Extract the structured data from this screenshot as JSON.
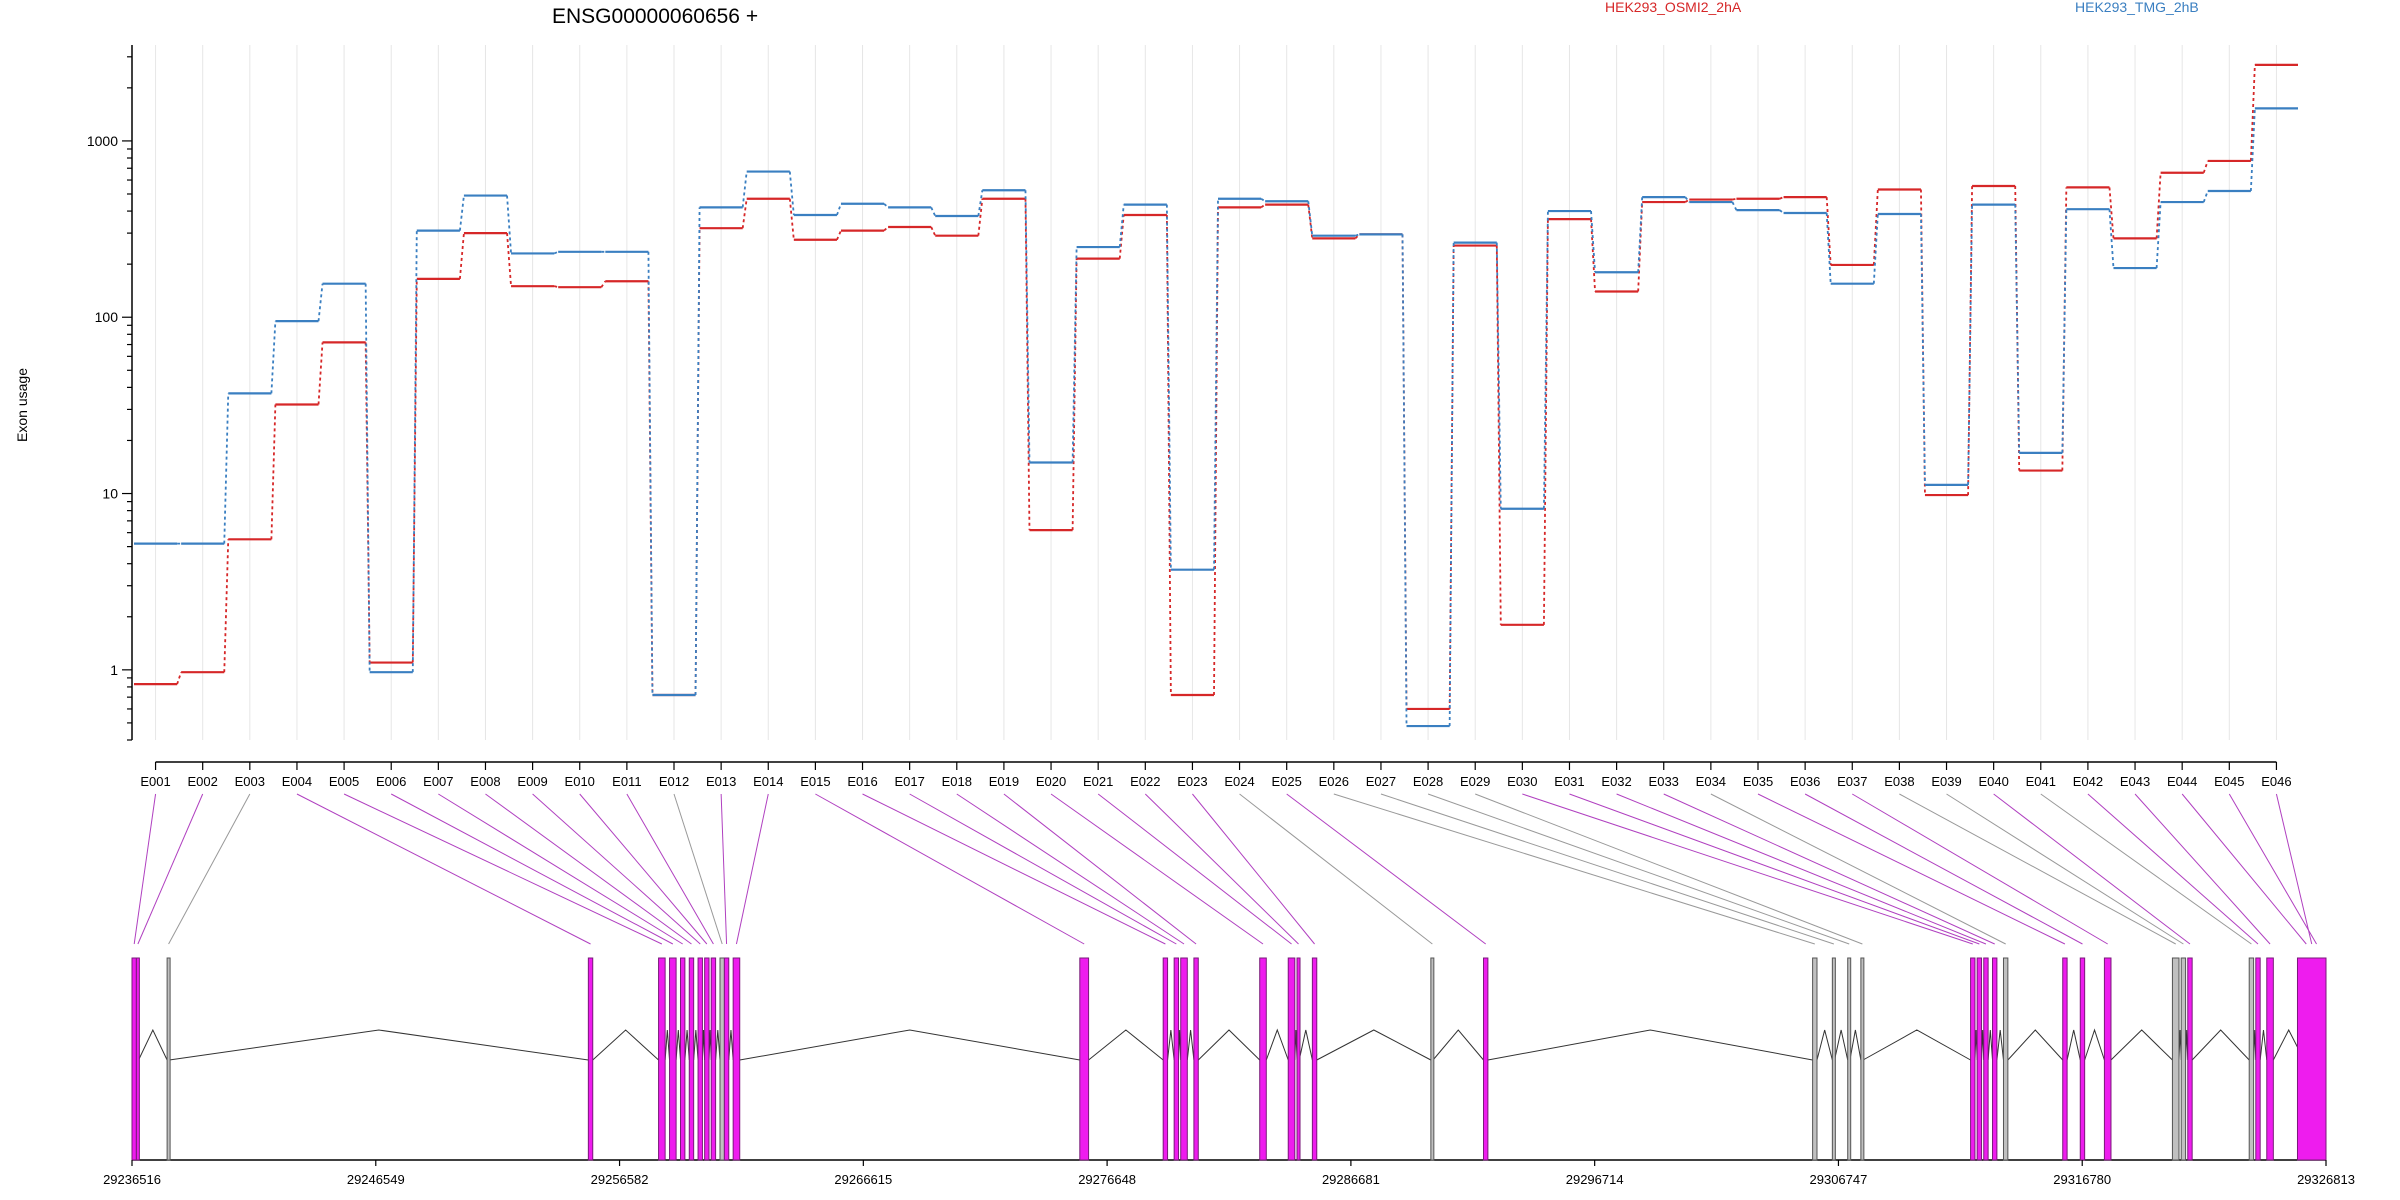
{
  "chart_data": {
    "type": "line",
    "title": "ENSG00000060656 +",
    "ylabel": "Exon usage",
    "yscale": "log",
    "ylim": [
      0.4,
      3500
    ],
    "yticks": [
      1,
      10,
      100,
      1000
    ],
    "ytick_labels": [
      "1",
      "10",
      "100",
      "1000"
    ],
    "grid": "vertical",
    "legend_placement": "top-right",
    "categories": [
      "E001",
      "E002",
      "E003",
      "E004",
      "E005",
      "E006",
      "E007",
      "E008",
      "E009",
      "E010",
      "E011",
      "E012",
      "E013",
      "E014",
      "E015",
      "E016",
      "E017",
      "E018",
      "E019",
      "E020",
      "E021",
      "E022",
      "E023",
      "E024",
      "E025",
      "E026",
      "E027",
      "E028",
      "E029",
      "E030",
      "E031",
      "E032",
      "E033",
      "E034",
      "E035",
      "E036",
      "E037",
      "E038",
      "E039",
      "E040",
      "E041",
      "E042",
      "E043",
      "E044",
      "E045",
      "E046"
    ],
    "series": [
      {
        "name": "HEK293_OSMI2_2hA",
        "color": "#d62728",
        "values": [
          0.83,
          0.97,
          5.5,
          32,
          72,
          1.1,
          165,
          300,
          150,
          148,
          160,
          0.72,
          320,
          470,
          275,
          310,
          325,
          290,
          470,
          6.2,
          215,
          380,
          0.72,
          420,
          435,
          280,
          295,
          0.6,
          255,
          1.8,
          360,
          140,
          450,
          465,
          470,
          480,
          198,
          530,
          9.8,
          555,
          13.5,
          545,
          280,
          660,
          770,
          2700
        ]
      },
      {
        "name": "HEK293_TMG_2hB",
        "color": "#3a7fc1",
        "values": [
          5.2,
          5.2,
          37,
          95,
          155,
          0.97,
          310,
          490,
          230,
          235,
          235,
          0.72,
          420,
          670,
          380,
          440,
          420,
          375,
          525,
          15,
          250,
          435,
          3.7,
          470,
          455,
          290,
          295,
          0.48,
          265,
          8.2,
          400,
          180,
          480,
          450,
          405,
          390,
          155,
          385,
          11.2,
          435,
          17,
          410,
          190,
          450,
          520,
          1530
        ]
      }
    ]
  },
  "gene_model": {
    "coord_ticks": [
      "29236516",
      "29246549",
      "29256582",
      "29266615",
      "29276648",
      "29286681",
      "29296714",
      "29306747",
      "29316780",
      "29326813"
    ],
    "colors": {
      "significant": "#ee1cee",
      "significant_edge": "#7a1a7a",
      "normal": "#c0c0c0",
      "normal_edge": "#555555",
      "connector_sig": "#b040c0",
      "connector_norm": "#999999"
    }
  }
}
